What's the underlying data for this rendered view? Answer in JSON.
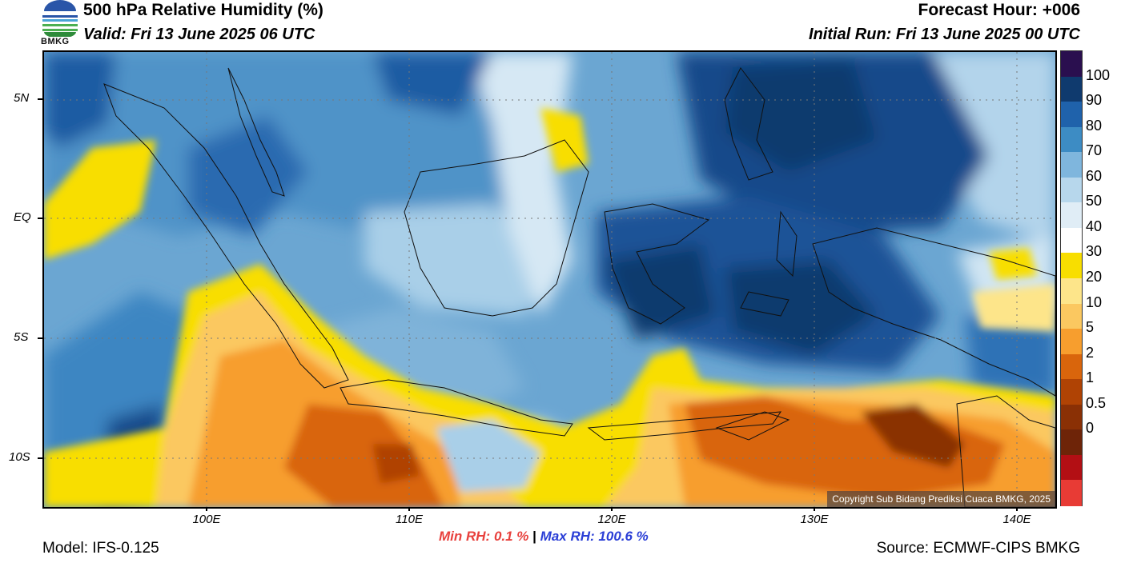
{
  "header": {
    "title": "500 hPa Relative Humidity (%)",
    "valid": "Valid: Fri 13 June 2025 06 UTC",
    "forecast_hour": "Forecast Hour: +006",
    "initial_run": "Initial Run: Fri 13 June 2025 00 UTC"
  },
  "logo": {
    "text": "BMKG",
    "icon": "bmkg-logo-icon"
  },
  "map": {
    "copyright": "Copyright Sub Bidang Prediksi Cuaca BMKG, 2025",
    "lat_labels": [
      "5N",
      "EQ",
      "5S",
      "10S"
    ],
    "lon_labels": [
      "100E",
      "110E",
      "120E",
      "130E",
      "140E"
    ]
  },
  "stats": {
    "min_label": "Min RH:",
    "min_value": "0.1 %",
    "separator": "|",
    "max_label": "Max RH: 100.6 %"
  },
  "footer": {
    "model": "Model: IFS-0.125",
    "source": "Source: ECMWF-CIPS BMKG"
  },
  "colorbar": {
    "labels": [
      "100",
      "90",
      "80",
      "70",
      "60",
      "50",
      "40",
      "30",
      "20",
      "10",
      "5",
      "2",
      "1",
      "0.5",
      "0"
    ],
    "colors": [
      "#2a0f4f",
      "#0f3a6e",
      "#1f62ab",
      "#3d8cc4",
      "#7fb6dd",
      "#b7d7ec",
      "#e0edf6",
      "#ffffff",
      "#f8de00",
      "#fde58a",
      "#fbc860",
      "#f79e2e",
      "#d9650c",
      "#b04304",
      "#8a3005",
      "#6e2408",
      "#b30f14",
      "#e83b35"
    ]
  }
}
